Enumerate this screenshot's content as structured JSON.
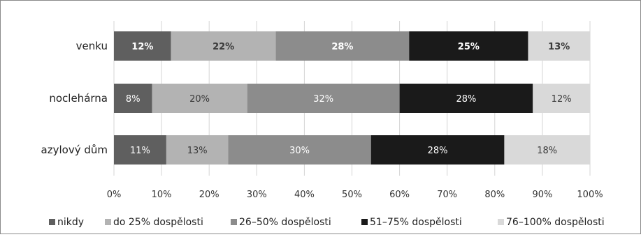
{
  "chart_data": {
    "type": "bar",
    "orientation": "horizontal",
    "stacked": true,
    "categories": [
      "venku",
      "noclehárna",
      "azylový dům"
    ],
    "series": [
      {
        "name": "nikdy",
        "values": [
          12,
          8,
          11
        ],
        "labels": [
          "12%",
          "8%",
          "11%"
        ],
        "color": "#5f5f5f",
        "label_color": "#ffffff"
      },
      {
        "name": "do 25% dospělosti",
        "values": [
          22,
          20,
          13
        ],
        "labels": [
          "22%",
          "20%",
          "13%"
        ],
        "color": "#b3b3b3",
        "label_color": "#3a3a3a"
      },
      {
        "name": "26–50% dospělosti",
        "values": [
          28,
          32,
          30
        ],
        "labels": [
          "28%",
          "32%",
          "30%"
        ],
        "color": "#8c8c8c",
        "label_color": "#ffffff"
      },
      {
        "name": "51–75% dospělosti",
        "values": [
          25,
          28,
          28
        ],
        "labels": [
          "25%",
          "28%",
          "28%"
        ],
        "color": "#1a1a1a",
        "label_color": "#ffffff"
      },
      {
        "name": "76–100% dospělosti",
        "values": [
          13,
          12,
          18
        ],
        "labels": [
          "13%",
          "12%",
          "18%"
        ],
        "color": "#d9d9d9",
        "label_color": "#3a3a3a"
      }
    ],
    "bold_label_categories": [
      "venku"
    ],
    "xlim": [
      0,
      100
    ],
    "xticks": [
      "0%",
      "10%",
      "20%",
      "30%",
      "40%",
      "50%",
      "60%",
      "70%",
      "80%",
      "90%",
      "100%"
    ],
    "title": "",
    "xlabel": "",
    "ylabel": "",
    "grid": true,
    "legend_position": "bottom"
  }
}
